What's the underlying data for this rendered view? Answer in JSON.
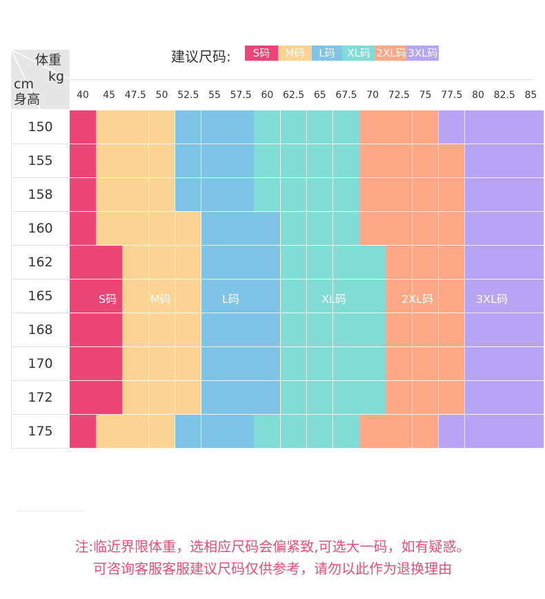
{
  "legend": {
    "title": "建议尺码:",
    "items": [
      {
        "label": "S码",
        "color": "#ec4578"
      },
      {
        "label": "M码",
        "color": "#fcd393"
      },
      {
        "label": "L码",
        "color": "#7fc3e7"
      },
      {
        "label": "XL码",
        "color": "#82dcd6"
      },
      {
        "label": "2XL码",
        "color": "#fda886"
      },
      {
        "label": "3XL码",
        "color": "#b7a5f4"
      }
    ]
  },
  "corner": {
    "weight": "体重",
    "weight_unit": "kg",
    "height_unit": "cm",
    "height": "身高"
  },
  "weights": [
    "40",
    "45",
    "47.5",
    "50",
    "52.5",
    "55",
    "57.5",
    "60",
    "62.5",
    "65",
    "67.5",
    "70",
    "72.5",
    "75",
    "77.5",
    "80",
    "82.5",
    "85"
  ],
  "heights": [
    "150",
    "155",
    "158",
    "160",
    "162",
    "165",
    "168",
    "170",
    "172",
    "175"
  ],
  "size_labels": [
    "S码",
    "M码",
    "L码",
    "XL码",
    "2XL码",
    "3XL码"
  ],
  "chart_data": {
    "type": "table",
    "size_codes": [
      "S",
      "M",
      "L",
      "XL",
      "2XL",
      "3XL"
    ],
    "rows": [
      [
        "S",
        "M",
        "M",
        "M",
        "L",
        "L",
        "L",
        "XL",
        "XL",
        "XL",
        "XL",
        "2XL",
        "2XL",
        "2XL",
        "3XL",
        "3XL",
        "3XL",
        "3XL"
      ],
      [
        "S",
        "M",
        "M",
        "M",
        "L",
        "L",
        "L",
        "XL",
        "XL",
        "XL",
        "XL",
        "2XL",
        "2XL",
        "2XL",
        "2XL",
        "3XL",
        "3XL",
        "3XL"
      ],
      [
        "S",
        "M",
        "M",
        "M",
        "L",
        "L",
        "L",
        "XL",
        "XL",
        "XL",
        "XL",
        "2XL",
        "2XL",
        "2XL",
        "2XL",
        "3XL",
        "3XL",
        "3XL"
      ],
      [
        "S",
        "M",
        "M",
        "M",
        "M",
        "L",
        "L",
        "L",
        "XL",
        "XL",
        "XL",
        "2XL",
        "2XL",
        "2XL",
        "2XL",
        "3XL",
        "3XL",
        "3XL"
      ],
      [
        "S",
        "S",
        "M",
        "M",
        "M",
        "L",
        "L",
        "L",
        "XL",
        "XL",
        "XL",
        "XL",
        "2XL",
        "2XL",
        "2XL",
        "3XL",
        "3XL",
        "3XL"
      ],
      [
        "S",
        "S",
        "M",
        "M",
        "M",
        "L",
        "L",
        "L",
        "XL",
        "XL",
        "XL",
        "XL",
        "2XL",
        "2XL",
        "2XL",
        "3XL",
        "3XL",
        "3XL"
      ],
      [
        "S",
        "S",
        "M",
        "M",
        "M",
        "L",
        "L",
        "L",
        "XL",
        "XL",
        "XL",
        "XL",
        "2XL",
        "2XL",
        "2XL",
        "3XL",
        "3XL",
        "3XL"
      ],
      [
        "S",
        "S",
        "M",
        "M",
        "M",
        "L",
        "L",
        "L",
        "XL",
        "XL",
        "XL",
        "XL",
        "2XL",
        "2XL",
        "2XL",
        "3XL",
        "3XL",
        "3XL"
      ],
      [
        "S",
        "S",
        "M",
        "M",
        "M",
        "L",
        "L",
        "L",
        "XL",
        "XL",
        "XL",
        "XL",
        "2XL",
        "2XL",
        "2XL",
        "3XL",
        "3XL",
        "3XL"
      ],
      [
        "S",
        "M",
        "M",
        "M",
        "L",
        "L",
        "L",
        "XL",
        "XL",
        "XL",
        "XL",
        "2XL",
        "2XL",
        "2XL",
        "3XL",
        "3XL",
        "3XL",
        "3XL"
      ]
    ]
  },
  "notes": {
    "line1": "注:临近界限体重，选相应尺码会偏紧致,可选大一码，如有疑惑。",
    "line2": "可咨询客服客服建议尺码仅供参考，请勿以此作为退换理由"
  }
}
